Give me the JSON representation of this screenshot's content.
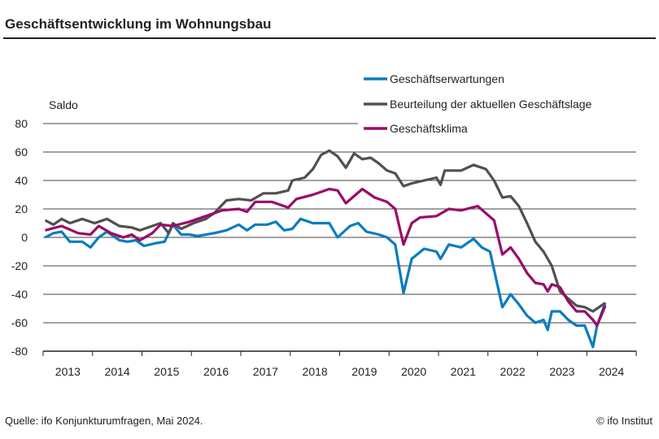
{
  "title": "Geschäftsentwicklung im Wohnungsbau",
  "source": "Quelle: ifo Konjunkturumfragen, Mai 2024.",
  "copyright": "© ifo Institut",
  "chart_data": {
    "type": "line",
    "ylabel": "Saldo",
    "ylim": [
      -80,
      80
    ],
    "yticks": [
      80,
      60,
      40,
      20,
      0,
      -20,
      -40,
      -60,
      -80
    ],
    "xlim": [
      "2013-01",
      "2024-12"
    ],
    "xticks": [
      "2013",
      "2014",
      "2015",
      "2016",
      "2017",
      "2018",
      "2019",
      "2020",
      "2021",
      "2022",
      "2023",
      "2024"
    ],
    "grid": true,
    "legend": "top-right",
    "series": [
      {
        "name": "Geschäftserwartungen",
        "color": "#0a7cc1",
        "points": [
          [
            "2013-01",
            0
          ],
          [
            "2013-03",
            3
          ],
          [
            "2013-05",
            4
          ],
          [
            "2013-07",
            -3
          ],
          [
            "2013-10",
            -3
          ],
          [
            "2013-12",
            -7
          ],
          [
            "2014-02",
            0
          ],
          [
            "2014-04",
            4
          ],
          [
            "2014-07",
            -2
          ],
          [
            "2014-09",
            -3
          ],
          [
            "2014-11",
            -2
          ],
          [
            "2015-01",
            -6
          ],
          [
            "2015-04",
            -4
          ],
          [
            "2015-06",
            -3
          ],
          [
            "2015-08",
            9
          ],
          [
            "2015-10",
            2
          ],
          [
            "2015-12",
            2
          ],
          [
            "2016-02",
            1
          ],
          [
            "2016-06",
            3
          ],
          [
            "2016-09",
            5
          ],
          [
            "2016-12",
            9
          ],
          [
            "2017-02",
            5
          ],
          [
            "2017-04",
            9
          ],
          [
            "2017-07",
            9
          ],
          [
            "2017-09",
            11
          ],
          [
            "2017-11",
            5
          ],
          [
            "2018-01",
            6
          ],
          [
            "2018-03",
            13
          ],
          [
            "2018-06",
            10
          ],
          [
            "2018-10",
            10
          ],
          [
            "2018-12",
            0
          ],
          [
            "2019-03",
            8
          ],
          [
            "2019-05",
            10
          ],
          [
            "2019-07",
            4
          ],
          [
            "2019-10",
            2
          ],
          [
            "2019-12",
            0
          ],
          [
            "2020-02",
            -5
          ],
          [
            "2020-04",
            -39
          ],
          [
            "2020-06",
            -15
          ],
          [
            "2020-09",
            -8
          ],
          [
            "2020-12",
            -10
          ],
          [
            "2021-01",
            -15
          ],
          [
            "2021-03",
            -5
          ],
          [
            "2021-06",
            -7
          ],
          [
            "2021-09",
            -1
          ],
          [
            "2021-11",
            -7
          ],
          [
            "2022-01",
            -10
          ],
          [
            "2022-04",
            -49
          ],
          [
            "2022-06",
            -40
          ],
          [
            "2022-08",
            -47
          ],
          [
            "2022-10",
            -55
          ],
          [
            "2022-12",
            -60
          ],
          [
            "2023-02",
            -58
          ],
          [
            "2023-03",
            -65
          ],
          [
            "2023-04",
            -52
          ],
          [
            "2023-06",
            -52
          ],
          [
            "2023-08",
            -58
          ],
          [
            "2023-10",
            -62
          ],
          [
            "2023-12",
            -62
          ],
          [
            "2024-02",
            -77
          ],
          [
            "2024-03",
            -62
          ],
          [
            "2024-05",
            -46
          ]
        ]
      },
      {
        "name": "Beurteilung der aktuellen Geschäftslage",
        "color": "#505050",
        "points": [
          [
            "2013-01",
            12
          ],
          [
            "2013-03",
            9
          ],
          [
            "2013-05",
            13
          ],
          [
            "2013-07",
            10
          ],
          [
            "2013-10",
            13
          ],
          [
            "2014-01",
            10
          ],
          [
            "2014-04",
            13
          ],
          [
            "2014-07",
            8
          ],
          [
            "2014-10",
            7
          ],
          [
            "2014-12",
            5
          ],
          [
            "2015-03",
            8
          ],
          [
            "2015-05",
            10
          ],
          [
            "2015-07",
            3
          ],
          [
            "2015-08",
            10
          ],
          [
            "2015-10",
            6
          ],
          [
            "2016-01",
            10
          ],
          [
            "2016-04",
            13
          ],
          [
            "2016-06",
            17
          ],
          [
            "2016-09",
            26
          ],
          [
            "2016-12",
            27
          ],
          [
            "2017-03",
            26
          ],
          [
            "2017-06",
            31
          ],
          [
            "2017-09",
            31
          ],
          [
            "2017-12",
            33
          ],
          [
            "2018-01",
            40
          ],
          [
            "2018-04",
            42
          ],
          [
            "2018-06",
            48
          ],
          [
            "2018-08",
            58
          ],
          [
            "2018-10",
            61
          ],
          [
            "2018-12",
            57
          ],
          [
            "2019-02",
            49
          ],
          [
            "2019-04",
            59
          ],
          [
            "2019-06",
            55
          ],
          [
            "2019-08",
            56
          ],
          [
            "2019-10",
            52
          ],
          [
            "2019-12",
            47
          ],
          [
            "2020-02",
            45
          ],
          [
            "2020-04",
            36
          ],
          [
            "2020-06",
            38
          ],
          [
            "2020-09",
            40
          ],
          [
            "2020-12",
            42
          ],
          [
            "2021-01",
            37
          ],
          [
            "2021-02",
            47
          ],
          [
            "2021-06",
            47
          ],
          [
            "2021-09",
            51
          ],
          [
            "2021-12",
            48
          ],
          [
            "2022-02",
            40
          ],
          [
            "2022-04",
            28
          ],
          [
            "2022-06",
            29
          ],
          [
            "2022-08",
            22
          ],
          [
            "2022-10",
            10
          ],
          [
            "2022-12",
            -3
          ],
          [
            "2023-02",
            -10
          ],
          [
            "2023-04",
            -20
          ],
          [
            "2023-06",
            -38
          ],
          [
            "2023-08",
            -43
          ],
          [
            "2023-10",
            -48
          ],
          [
            "2023-12",
            -49
          ],
          [
            "2024-02",
            -52
          ],
          [
            "2024-04",
            -48
          ],
          [
            "2024-05",
            -46
          ]
        ]
      },
      {
        "name": "Geschäftsklima",
        "color": "#9b0a6a",
        "points": [
          [
            "2013-01",
            5
          ],
          [
            "2013-05",
            8
          ],
          [
            "2013-09",
            3
          ],
          [
            "2013-12",
            2
          ],
          [
            "2014-02",
            8
          ],
          [
            "2014-05",
            3
          ],
          [
            "2014-08",
            0
          ],
          [
            "2014-10",
            2
          ],
          [
            "2014-12",
            -2
          ],
          [
            "2015-03",
            3
          ],
          [
            "2015-05",
            9
          ],
          [
            "2015-08",
            8
          ],
          [
            "2015-12",
            11
          ],
          [
            "2016-04",
            15
          ],
          [
            "2016-08",
            19
          ],
          [
            "2016-12",
            20
          ],
          [
            "2017-02",
            18
          ],
          [
            "2017-04",
            25
          ],
          [
            "2017-08",
            25
          ],
          [
            "2017-12",
            21
          ],
          [
            "2018-02",
            27
          ],
          [
            "2018-06",
            30
          ],
          [
            "2018-10",
            34
          ],
          [
            "2018-12",
            33
          ],
          [
            "2019-02",
            24
          ],
          [
            "2019-06",
            34
          ],
          [
            "2019-09",
            28
          ],
          [
            "2019-12",
            25
          ],
          [
            "2020-02",
            20
          ],
          [
            "2020-04",
            -5
          ],
          [
            "2020-06",
            10
          ],
          [
            "2020-08",
            14
          ],
          [
            "2020-12",
            15
          ],
          [
            "2021-03",
            20
          ],
          [
            "2021-06",
            19
          ],
          [
            "2021-10",
            22
          ],
          [
            "2021-12",
            17
          ],
          [
            "2022-02",
            12
          ],
          [
            "2022-04",
            -12
          ],
          [
            "2022-06",
            -7
          ],
          [
            "2022-08",
            -15
          ],
          [
            "2022-10",
            -25
          ],
          [
            "2022-12",
            -32
          ],
          [
            "2023-02",
            -33
          ],
          [
            "2023-03",
            -38
          ],
          [
            "2023-04",
            -33
          ],
          [
            "2023-06",
            -35
          ],
          [
            "2023-08",
            -45
          ],
          [
            "2023-10",
            -52
          ],
          [
            "2023-12",
            -52
          ],
          [
            "2024-02",
            -58
          ],
          [
            "2024-03",
            -62
          ],
          [
            "2024-05",
            -48
          ]
        ]
      }
    ]
  }
}
